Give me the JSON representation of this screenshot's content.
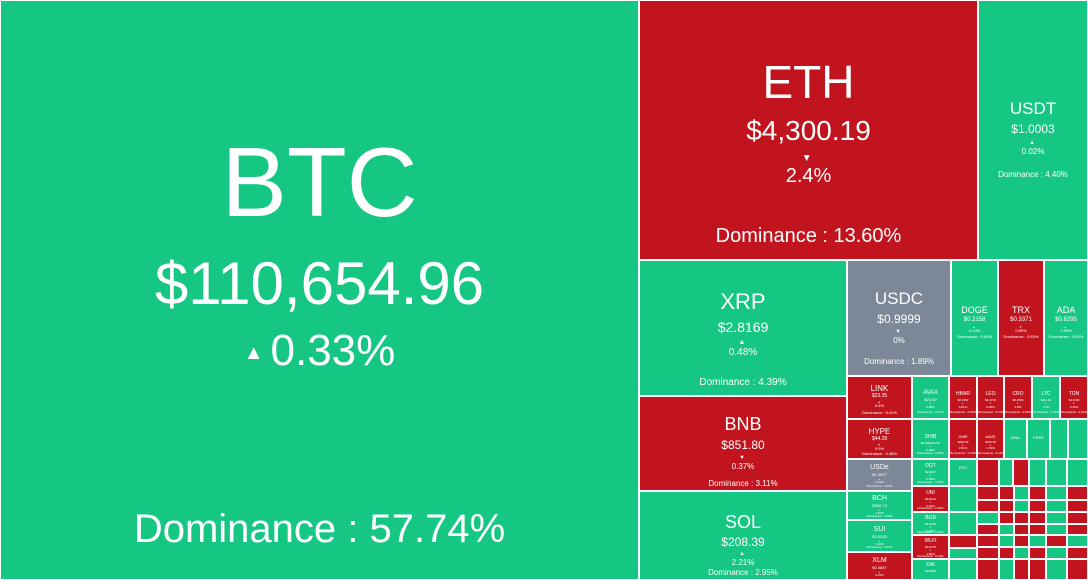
{
  "colors": {
    "up": "#16c784",
    "down": "#c2141e",
    "flat": "#7c8797",
    "text": "#ffffff"
  },
  "icons": {
    "up": "up-triangle-icon",
    "down": "down-triangle-icon"
  },
  "tiles": {
    "btc": {
      "symbol": "BTC",
      "price": "$110,654.96",
      "arrow": "▲",
      "change": "0.33%",
      "dominance": "Dominance : 57.74%"
    },
    "eth": {
      "symbol": "ETH",
      "price": "$4,300.19",
      "arrow": "▼",
      "change": "2.4%",
      "dominance": "Dominance : 13.60%"
    },
    "usdt": {
      "symbol": "USDT",
      "price": "$1.0003",
      "arrow": "▲",
      "change": "0.02%",
      "dominance": "Dominance : 4.40%"
    },
    "xrp": {
      "symbol": "XRP",
      "price": "$2.8169",
      "arrow": "▲",
      "change": "0.48%",
      "dominance": "Dominance : 4.39%"
    },
    "usdc": {
      "symbol": "USDC",
      "price": "$0.9999",
      "arrow": "▼",
      "change": "0%",
      "dominance": "Dominance : 1.89%"
    },
    "bnb": {
      "symbol": "BNB",
      "price": "$851.80",
      "arrow": "▼",
      "change": "0.37%",
      "dominance": "Dominance : 3.11%"
    },
    "sol": {
      "symbol": "SOL",
      "price": "$208.39",
      "arrow": "▲",
      "change": "2.21%",
      "dominance": "Dominance : 2.95%"
    },
    "doge": {
      "symbol": "DOGE",
      "price": "$0.2158",
      "arrow": "▲",
      "change": "0.13%",
      "dominance": "Dominance : 0.83%"
    },
    "trx": {
      "symbol": "TRX",
      "price": "$0.3371",
      "arrow": "▼",
      "change": "0.89%",
      "dominance": "Dominance : 0.83%"
    },
    "ada": {
      "symbol": "ADA",
      "price": "$0.8295",
      "arrow": "▲",
      "change": "1.99%",
      "dominance": "Dominance : 0.80%"
    },
    "link": {
      "symbol": "LINK",
      "price": "$23.35",
      "arrow": "▲",
      "change": "0.4%",
      "dominance": "Dominance : 0.41%"
    },
    "avax": {
      "symbol": "AVAX",
      "price": "$24.60",
      "arrow": "▲",
      "change": "0.88%",
      "dominance": "Dominance : 0.27%"
    },
    "hbar": {
      "symbol": "HBAR",
      "price": "$0.2369",
      "arrow": "▼",
      "change": "0.81%",
      "dominance": "Dominance : 0.26%"
    },
    "leo": {
      "symbol": "LEO",
      "price": "$9.4715",
      "arrow": "▼",
      "change": "0.09%",
      "dominance": "Dominance : 0.23%"
    },
    "cro": {
      "symbol": "CRO",
      "price": "$0.2583",
      "arrow": "▼",
      "change": "3.8%",
      "dominance": "Dominance : 0.22%"
    },
    "ltc": {
      "symbol": "LTC",
      "price": "$111.29",
      "arrow": "▲",
      "change": "1.2%",
      "dominance": "Dominance : 0.22%"
    },
    "ton": {
      "symbol": "TON",
      "price": "$3.2163",
      "arrow": "▼",
      "change": "0.34%",
      "dominance": "Dominance : 0.21%"
    },
    "hype": {
      "symbol": "HYPE",
      "price": "$44.28",
      "arrow": "▼",
      "change": "0.9%",
      "dominance": "Dominance : 0.38%"
    },
    "shib": {
      "symbol": "SHIB",
      "price": "$0.000012734",
      "arrow": "▲",
      "change": "0.94%",
      "dominance": "Dominance : 0.20%"
    },
    "xmr": {
      "symbol": "XMR",
      "price": "$265.39",
      "arrow": "▼",
      "change": "0.51%",
      "dominance": "Dominance : 0.13%"
    },
    "aave": {
      "symbol": "AAVE",
      "price": "$316.60",
      "arrow": "▼",
      "change": "1.79%",
      "dominance": "Dominance : 0.13%"
    },
    "dna": {
      "symbol": "DNA",
      "price": "",
      "arrow": "",
      "change": "",
      "dominance": ""
    },
    "pepe": {
      "symbol": "PEPE",
      "price": "",
      "arrow": "",
      "change": "",
      "dominance": ""
    },
    "usde": {
      "symbol": "USDe",
      "price": "$1.0007",
      "arrow": "▲",
      "change": "0.01%",
      "dominance": "Dominance : 0.33%"
    },
    "dot": {
      "symbol": "DOT",
      "price": "$3.9037",
      "arrow": "▲",
      "change": "0.35%",
      "dominance": "Dominance : 0.16%"
    },
    "etc": {
      "symbol": "ETC",
      "price": "",
      "arrow": "",
      "change": "",
      "dominance": ""
    },
    "bch": {
      "symbol": "BCH",
      "price": "$565.73",
      "arrow": "▲",
      "change": "1.57%",
      "dominance": "Dominance : 0.29%"
    },
    "uni": {
      "symbol": "UNI",
      "price": "$9.8014",
      "arrow": "▼",
      "change": "0.42%",
      "dominance": "Dominance : 0.16%"
    },
    "sui": {
      "symbol": "SUI",
      "price": "$3.5205",
      "arrow": "▲",
      "change": "1.46%",
      "dominance": "Dominance : 0.31%"
    },
    "bgb": {
      "symbol": "BGB",
      "price": "$4.8010",
      "arrow": "▲",
      "change": "0.42%",
      "dominance": "Dominance : 0.15%"
    },
    "wlfi": {
      "symbol": "WLFI",
      "price": "$0.2279",
      "arrow": "▼",
      "change": "1.89%",
      "dominance": "Dominance : 0.14%"
    },
    "xlm": {
      "symbol": "XLM",
      "price": "$0.3687",
      "arrow": "▲",
      "change": "0.16%",
      "dominance": "Dominance : 0.30%"
    },
    "dai": {
      "symbol": "DAI",
      "price": "$0.9999",
      "arrow": "▲",
      "change": "0%",
      "dominance": "Dominance : 0.13%"
    }
  }
}
